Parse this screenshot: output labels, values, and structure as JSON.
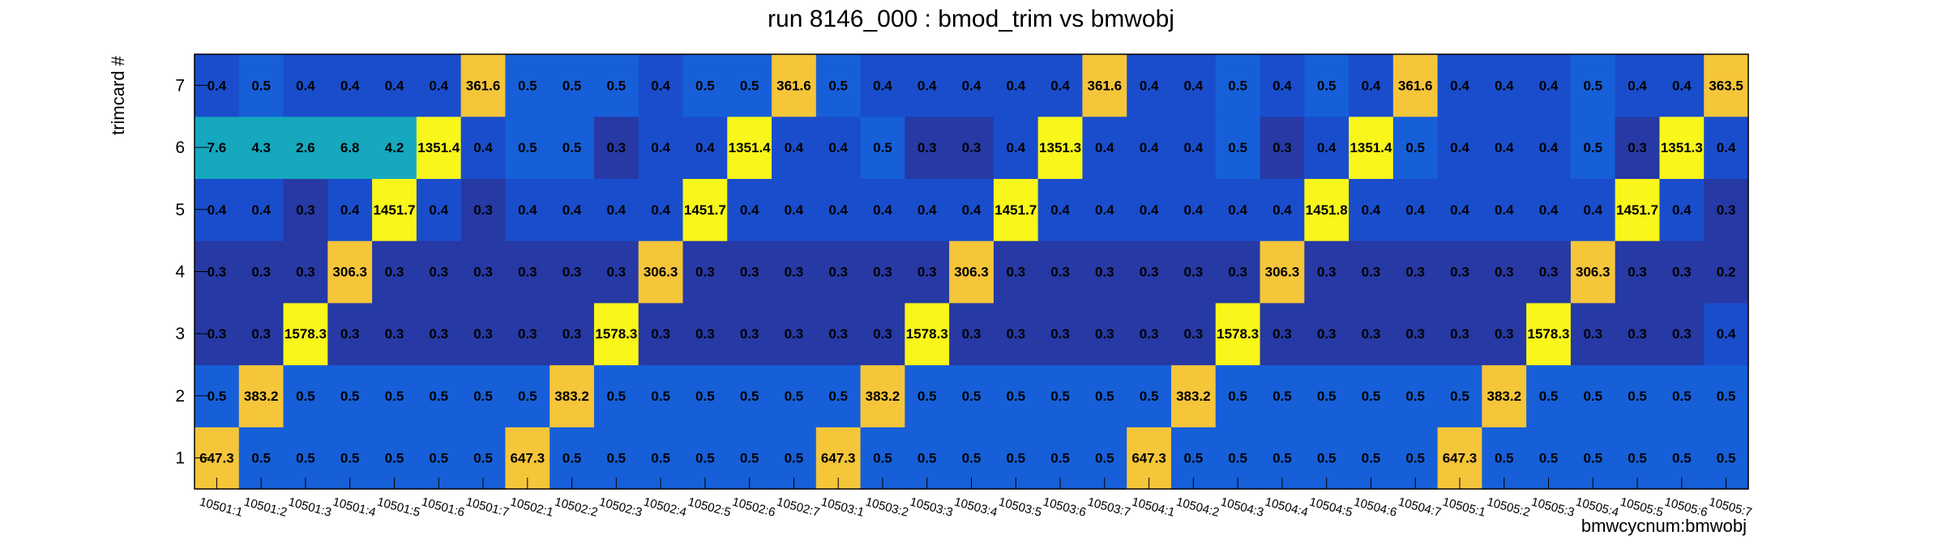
{
  "chart_data": {
    "type": "heatmap",
    "title": "run 8146_000 : bmod_trim vs bmwobj",
    "xlabel": "bmwcycnum:bmwobj",
    "ylabel": "trimcard #",
    "x_categories": [
      "10501:1",
      "10501:2",
      "10501:3",
      "10501:4",
      "10501:5",
      "10501:6",
      "10501:7",
      "10502:1",
      "10502:2",
      "10502:3",
      "10502:4",
      "10502:5",
      "10502:6",
      "10502:7",
      "10503:1",
      "10503:2",
      "10503:3",
      "10503:4",
      "10503:5",
      "10503:6",
      "10503:7",
      "10504:1",
      "10504:2",
      "10504:3",
      "10504:4",
      "10504:5",
      "10504:6",
      "10504:7",
      "10505:1",
      "10505:2",
      "10505:3",
      "10505:4",
      "10505:5",
      "10505:6",
      "10505:7"
    ],
    "y_categories": [
      "1",
      "2",
      "3",
      "4",
      "5",
      "6",
      "7"
    ],
    "values": [
      [
        "647.3",
        "0.5",
        "0.5",
        "0.5",
        "0.5",
        "0.5",
        "0.5",
        "647.3",
        "0.5",
        "0.5",
        "0.5",
        "0.5",
        "0.5",
        "0.5",
        "647.3",
        "0.5",
        "0.5",
        "0.5",
        "0.5",
        "0.5",
        "0.5",
        "647.3",
        "0.5",
        "0.5",
        "0.5",
        "0.5",
        "0.5",
        "0.5",
        "647.3",
        "0.5",
        "0.5",
        "0.5",
        "0.5",
        "0.5",
        "0.5"
      ],
      [
        "0.5",
        "383.2",
        "0.5",
        "0.5",
        "0.5",
        "0.5",
        "0.5",
        "0.5",
        "383.2",
        "0.5",
        "0.5",
        "0.5",
        "0.5",
        "0.5",
        "0.5",
        "383.2",
        "0.5",
        "0.5",
        "0.5",
        "0.5",
        "0.5",
        "0.5",
        "383.2",
        "0.5",
        "0.5",
        "0.5",
        "0.5",
        "0.5",
        "0.5",
        "383.2",
        "0.5",
        "0.5",
        "0.5",
        "0.5",
        "0.5"
      ],
      [
        "0.3",
        "0.3",
        "1578.3",
        "0.3",
        "0.3",
        "0.3",
        "0.3",
        "0.3",
        "0.3",
        "1578.3",
        "0.3",
        "0.3",
        "0.3",
        "0.3",
        "0.3",
        "0.3",
        "1578.3",
        "0.3",
        "0.3",
        "0.3",
        "0.3",
        "0.3",
        "0.3",
        "1578.3",
        "0.3",
        "0.3",
        "0.3",
        "0.3",
        "0.3",
        "0.3",
        "1578.3",
        "0.3",
        "0.3",
        "0.3",
        "0.4"
      ],
      [
        "0.3",
        "0.3",
        "0.3",
        "306.3",
        "0.3",
        "0.3",
        "0.3",
        "0.3",
        "0.3",
        "0.3",
        "306.3",
        "0.3",
        "0.3",
        "0.3",
        "0.3",
        "0.3",
        "0.3",
        "306.3",
        "0.3",
        "0.3",
        "0.3",
        "0.3",
        "0.3",
        "0.3",
        "306.3",
        "0.3",
        "0.3",
        "0.3",
        "0.3",
        "0.3",
        "0.3",
        "306.3",
        "0.3",
        "0.3",
        "0.2"
      ],
      [
        "0.4",
        "0.4",
        "0.3",
        "0.4",
        "1451.7",
        "0.4",
        "0.3",
        "0.4",
        "0.4",
        "0.4",
        "0.4",
        "1451.7",
        "0.4",
        "0.4",
        "0.4",
        "0.4",
        "0.4",
        "0.4",
        "1451.7",
        "0.4",
        "0.4",
        "0.4",
        "0.4",
        "0.4",
        "0.4",
        "1451.8",
        "0.4",
        "0.4",
        "0.4",
        "0.4",
        "0.4",
        "0.4",
        "1451.7",
        "0.4",
        "0.3"
      ],
      [
        "7.6",
        "4.3",
        "2.6",
        "6.8",
        "4.2",
        "1351.4",
        "0.4",
        "0.5",
        "0.5",
        "0.3",
        "0.4",
        "0.4",
        "1351.4",
        "0.4",
        "0.4",
        "0.5",
        "0.3",
        "0.3",
        "0.4",
        "1351.3",
        "0.4",
        "0.4",
        "0.4",
        "0.5",
        "0.3",
        "0.4",
        "1351.4",
        "0.5",
        "0.4",
        "0.4",
        "0.4",
        "0.5",
        "0.3",
        "1351.3",
        "0.4"
      ],
      [
        "0.4",
        "0.5",
        "0.4",
        "0.4",
        "0.4",
        "0.4",
        "361.6",
        "0.5",
        "0.5",
        "0.5",
        "0.4",
        "0.5",
        "0.5",
        "361.6",
        "0.5",
        "0.4",
        "0.4",
        "0.4",
        "0.4",
        "0.4",
        "361.6",
        "0.4",
        "0.4",
        "0.5",
        "0.4",
        "0.5",
        "0.4",
        "361.6",
        "0.4",
        "0.4",
        "0.4",
        "0.5",
        "0.4",
        "0.4",
        "363.5"
      ]
    ],
    "z_range": [
      0,
      1578.3
    ],
    "grid": false,
    "legend": "none",
    "colors": {
      "frame": "#000000",
      "low_dark": "#2639a4",
      "low_mid": "#1a4dcc",
      "low_light": "#165fd8",
      "teal": "#15a8bf",
      "orange": "#f5c53a",
      "yellow": "#f8f61a"
    }
  }
}
